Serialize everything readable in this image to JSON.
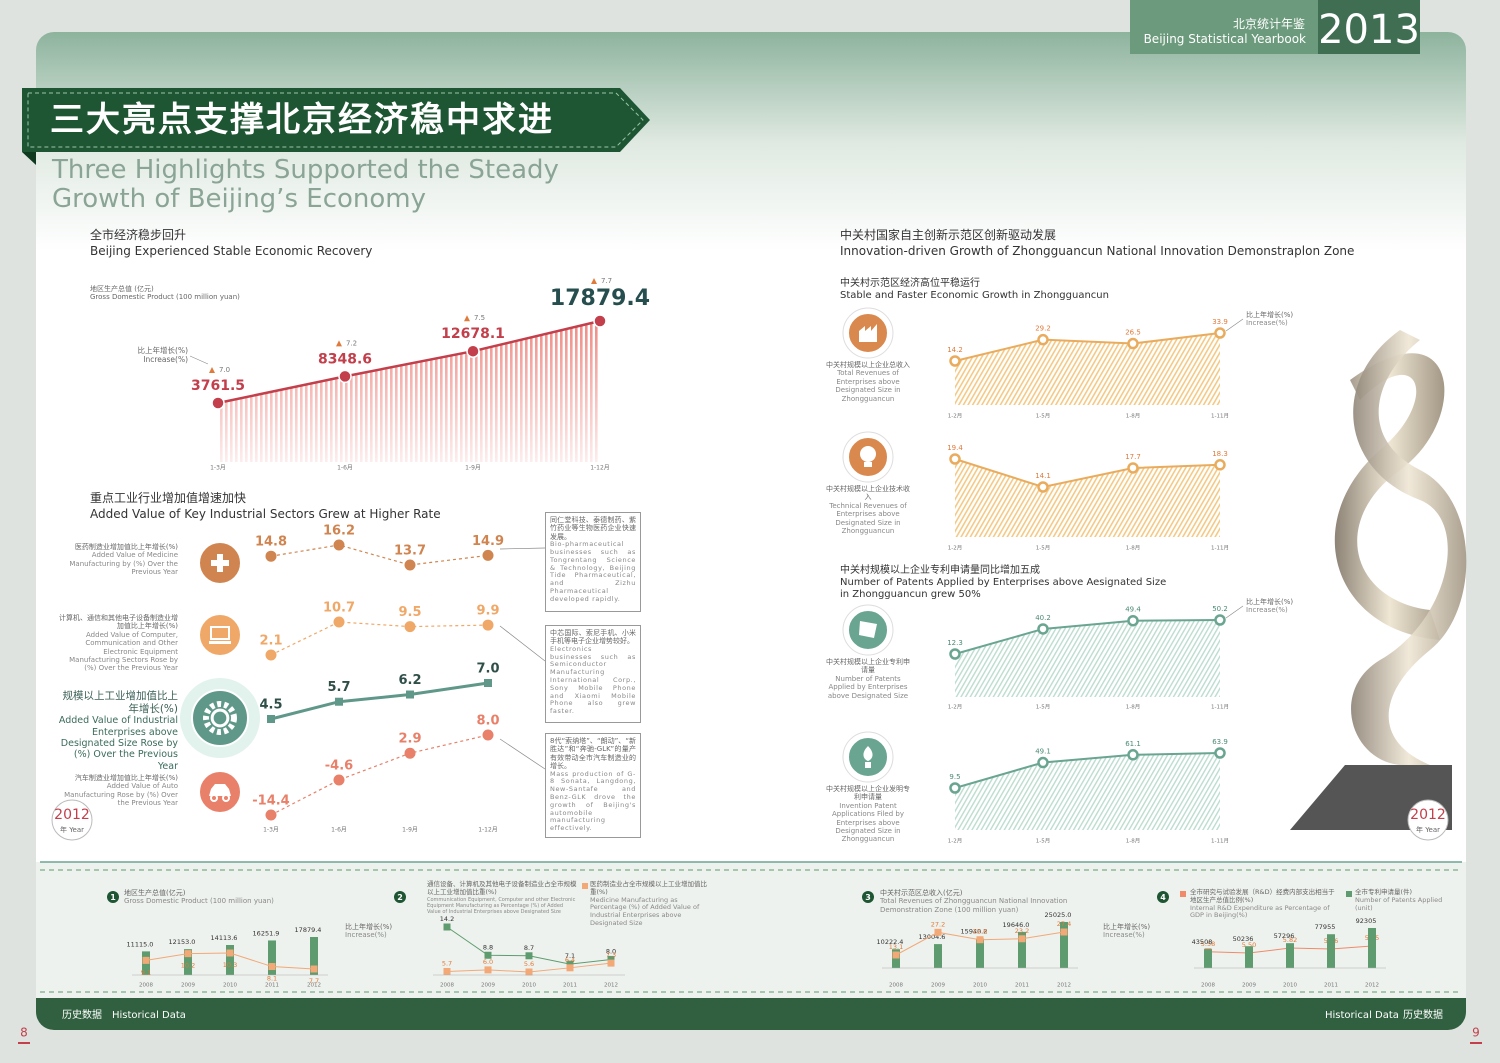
{
  "header": {
    "title_cn": "北京统计年鉴",
    "title_en": "Beijing Statistical Yearbook",
    "year": "2013"
  },
  "banner": {
    "title_cn": "三大亮点支撑北京经济稳中求进",
    "title_en": "Three Highlights Supported the Steady Growth of Beijing’s Economy"
  },
  "sections": [
    {
      "cn": "全市经济稳步回升",
      "en": "Beijing Experienced Stable Economic Recovery"
    },
    {
      "cn": "重点工业行业增加值增速加快",
      "en": "Added Value of Key Industrial Sectors Grew at Higher Rate"
    },
    {
      "cn": "中关村国家自主创新示范区创新驱动发展",
      "en": "Innovation-driven Growth of Zhongguancun National Innovation Demonstraplon Zone"
    }
  ],
  "chart_data": [
    {
      "type": "area",
      "title": "地区生产总值 (亿元)",
      "title_en": "Gross Domestic Product (100 million yuan)",
      "categories": [
        "1-3月",
        "1-6月",
        "1-9月",
        "1-12月"
      ],
      "series": [
        {
          "values": [
            3761.5,
            8348.6,
            12678.1,
            17879.4
          ],
          "color": "#c23f4b"
        },
        {
          "name": "比上年增长(%)",
          "name_en": "Increase(%)",
          "values": [
            7,
            7.2,
            7.5,
            7.7
          ],
          "value_labels": [
            "7.0",
            "7.2",
            "7.5",
            "7.7"
          ],
          "color": "#e07a3a"
        }
      ]
    },
    {
      "type": "multi-line",
      "categories": [
        "1-3月",
        "1-6月",
        "1-9月",
        "1-12月"
      ],
      "series": [
        {
          "name": "医药制造业增加值比上年增长(%)",
          "name_en": "Added Value of Medicine Manufacturing by (%) Over the Previous Year",
          "values": [
            14.8,
            16.2,
            13.7,
            14.9
          ],
          "color": "#d08550",
          "dashed": true,
          "note": "同仁堂科技、泰德制药、紫竹药业等生物医药企业快速发展。",
          "note_en": "Bio-pharmaceutical businesses such as Tongrentang Science & Technology, Beijing Tide Pharmaceutical, and Zizhu Pharmaceutical developed rapidly."
        },
        {
          "name": "计算机、通信和其他电子设备制造业增加值比上年增长(%)",
          "name_en": "Added Value of Computer, Communication and Other Electronic Equipment Manufacturing Sectors Rose by (%) Over the Previous Year",
          "values": [
            2.1,
            10.7,
            9.5,
            9.9
          ],
          "color": "#f0a868",
          "dashed": true,
          "note": "中芯国际、索尼手机、小米手机等电子企业增势较好。",
          "note_en": "Electronics businesses such as Semiconductor Manufacturing International Corp., Sony Mobile Phone and Xiaomi Mobile Phone also grew faster."
        },
        {
          "name": "规模以上工业增加值比上年增长(%)",
          "name_en": "Added Value of Industrial Enterprises above Designated Size Rose by (%) Over the Previous Year",
          "values": [
            4.5,
            5.7,
            6.2,
            7
          ],
          "value_labels": [
            "4.5",
            "5.7",
            "6.2",
            "7.0"
          ],
          "color": "#5f9889",
          "dashed": false
        },
        {
          "name": "汽车制造业增加值比上年增长(%)",
          "name_en": "Added Value of Auto Manufacturing Rose by (%) Over the Previous Year",
          "values": [
            -14.4,
            -4.6,
            2.9,
            8
          ],
          "value_labels": [
            "-14.4",
            "-4.6",
            "2.9",
            "8.0"
          ],
          "color": "#e8806a",
          "dashed": true,
          "note": "8代“索纳塔”、“朗动”、“新胜达”和“奔驰-GLK”的量产有效带动全市汽车制造业的增长。",
          "note_en": "Mass production of G-8 Sonata, Langdong, New-Santafe and Benz-GLK drove the growth of Beijing's automobile manufacturing effectively."
        }
      ]
    },
    {
      "type": "area-line",
      "subtitle": "中关村示范区经济高位平稳运行",
      "subtitle_en": "Stable and Faster Economic Growth in Zhongguancun",
      "legend": {
        "cn": "比上年增长(%)",
        "en": "Increase(%)"
      },
      "categories": [
        "1-2月",
        "1-5月",
        "1-8月",
        "1-11月"
      ],
      "series": [
        {
          "name": "中关村规模以上企业总收入",
          "name_en": "Total Revenues of Enterprises above Designated Size in Zhongguancun",
          "values": [
            14.2,
            29.2,
            26.5,
            33.9
          ],
          "color": "#e9ac5e"
        }
      ]
    },
    {
      "type": "area-line",
      "categories": [
        "1-2月",
        "1-5月",
        "1-8月",
        "1-11月"
      ],
      "series": [
        {
          "name": "中关村规模以上企业技术收入",
          "name_en": "Technical Revenues of Enterprises above Designated Size in Zhongguancun",
          "values": [
            19.4,
            14.1,
            17.7,
            18.3
          ],
          "color": "#e9ac5e"
        }
      ]
    },
    {
      "type": "area-line",
      "subtitle": "中关村规模以上企业专利申请量同比增加五成",
      "subtitle_en": "Number of Patents Applied by Enterprises above Aesignated Size in Zhongguancun grew 50%",
      "legend": {
        "cn": "比上年增长(%)",
        "en": "Increase(%)"
      },
      "categories": [
        "1-2月",
        "1-5月",
        "1-8月",
        "1-11月"
      ],
      "series": [
        {
          "name": "中关村规模以上企业专利申请量",
          "name_en": "Number of Patents Applied by Enterprises above Designated Size",
          "values": [
            12.3,
            40.2,
            49.4,
            50.2
          ],
          "color": "#6aa591"
        }
      ]
    },
    {
      "type": "area-line",
      "categories": [
        "1-2月",
        "1-5月",
        "1-8月",
        "1-11月"
      ],
      "series": [
        {
          "name": "中关村规模以上企业发明专利申请量",
          "name_en": "Invention Patent Applications Filed by Enterprises above Designated Size in Zhongguancun",
          "values": [
            9.5,
            49.1,
            61.1,
            63.9
          ],
          "color": "#6aa591"
        }
      ]
    },
    {
      "type": "combo",
      "index": 1,
      "categories": [
        "2008",
        "2009",
        "2010",
        "2011",
        "2012"
      ],
      "series": [
        {
          "name": "地区生产总值(亿元)",
          "name_en": "Gross Domestic Product (100 million yuan)",
          "kind": "bar",
          "values": [
            11115,
            12153,
            14113.6,
            16251.9,
            17879.4
          ],
          "value_labels": [
            "11115.0",
            "12153.0",
            "14113.6",
            "16251.9",
            "17879.4"
          ],
          "color": "#5e9c6f"
        },
        {
          "name": "比上年增长(%)",
          "name_en": "Increase(%)",
          "kind": "line",
          "values": [
            9.1,
            10.2,
            10.3,
            8.1,
            7.7
          ],
          "color": "#f2a877"
        }
      ]
    },
    {
      "type": "combo",
      "index": 2,
      "categories": [
        "2008",
        "2009",
        "2010",
        "2011",
        "2012"
      ],
      "series": [
        {
          "name": "通信设备、计算机及其他电子设备制造业占全市规模以上工业增加值比重(%)",
          "name_en": "Communication Equipment, Computer and other Electronic Equipment Manufacturing as Percentage (%) of Added Value of Industrial Enterprises above Designated Size",
          "kind": "line",
          "values": [
            14.2,
            8.8,
            8.7,
            7.1,
            8
          ],
          "value_labels": [
            "14.2",
            "8.8",
            "8.7",
            "7.1",
            "8.0"
          ],
          "color": "#5e9c6f"
        },
        {
          "name": "医药制造业占全市规模以上工业增加值比重(%)",
          "name_en": "Medicine Manufacturing as Percentage (%) of Added Value of Industrial Enterprises above Designated Size",
          "kind": "line",
          "values": [
            5.7,
            6,
            5.6,
            6.4,
            7.3
          ],
          "value_labels": [
            "5.7",
            "6.0",
            "5.6",
            "6.4",
            "7.3"
          ],
          "color": "#f2a877"
        }
      ]
    },
    {
      "type": "combo",
      "index": 3,
      "categories": [
        "2008",
        "2009",
        "2010",
        "2011",
        "2012"
      ],
      "series": [
        {
          "name": "中关村示范区总收入(亿元)",
          "name_en": "Total Revenues of Zhongguancun National Innovation Demonstration Zone (100 million yuan)",
          "kind": "bar",
          "values": [
            10222.4,
            13004.6,
            15940.2,
            19646,
            25025
          ],
          "value_labels": [
            "10222.4",
            "13004.6",
            "15940.2",
            "19646.0",
            "25025.0"
          ],
          "color": "#5e9c6f"
        },
        {
          "name": "比上年增长(%)",
          "name_en": "Increase(%)",
          "kind": "line",
          "values": [
            13.1,
            27.2,
            22.6,
            23.2,
            27.4
          ],
          "color": "#f2a877"
        }
      ]
    },
    {
      "type": "combo",
      "index": 4,
      "categories": [
        "2008",
        "2009",
        "2010",
        "2011",
        "2012"
      ],
      "series": [
        {
          "name": "全市研究与试验发展（R&D）经费内部支出相当于地区生产总值比例(%)",
          "name_en": "Internal R&D Expenditure as Percentage of GDP in Beijing(%)",
          "kind": "line",
          "values": [
            5.58,
            5.5,
            5.82,
            5.76,
            5.95
          ],
          "value_labels": [
            "5.58",
            "5.50",
            "5.82",
            "5.76",
            "5.95"
          ],
          "color": "#f08a6a"
        },
        {
          "name": "全市专利申请量(件)",
          "name_en": "Number of Patents Applied (unit)",
          "kind": "bar",
          "values": [
            43508,
            50236,
            57296,
            77955,
            92305
          ],
          "color": "#5e9c6f"
        }
      ]
    }
  ],
  "badge": {
    "year": "2012",
    "label": "年 Year"
  },
  "footer": {
    "cn": "历史数据",
    "en": "Historical Data"
  },
  "pages": [
    8,
    9
  ]
}
